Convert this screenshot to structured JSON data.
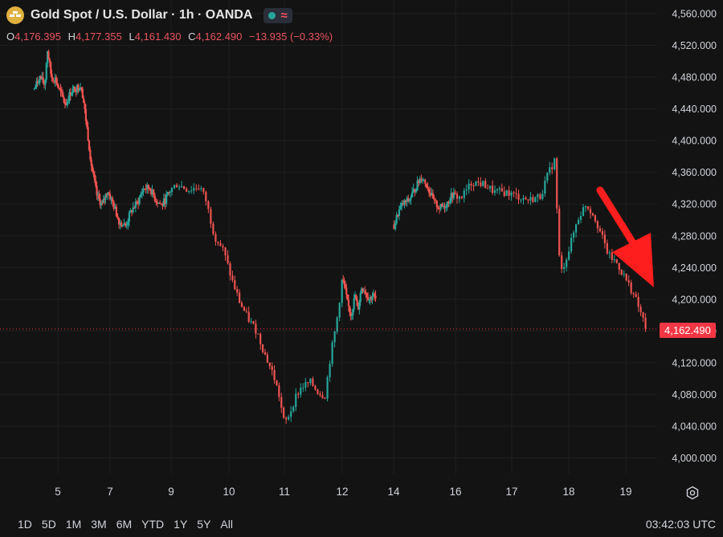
{
  "header": {
    "symbol_title": "Gold Spot / U.S. Dollar · 1h · OANDA",
    "market_status_icon": "green-dot",
    "wave_icon": "≈"
  },
  "ohlc": {
    "o_label": "O",
    "o_value": "4,176.395",
    "h_label": "H",
    "h_value": "4,177.355",
    "l_label": "L",
    "l_value": "4,161.430",
    "c_label": "C",
    "c_value": "4,162.490",
    "change": "−13.935 (−0.33%)"
  },
  "colors": {
    "background": "#131313",
    "up": "#26a69a",
    "down": "#ef5350",
    "annotation_arrow": "#ff1e1e",
    "price_label": "#f23645"
  },
  "current_price_label": "4,162.490",
  "timeframes": [
    "1D",
    "5D",
    "1M",
    "3M",
    "6M",
    "YTD",
    "1Y",
    "5Y",
    "All"
  ],
  "clock": "03:42:03 UTC",
  "settings_icon": "gear-icon",
  "chart_data": {
    "type": "candlestick",
    "title": "Gold Spot / U.S. Dollar · 1h · OANDA",
    "y_ticks": [
      "4,560.000",
      "4,520.000",
      "4,480.000",
      "4,440.000",
      "4,400.000",
      "4,360.000",
      "4,320.000",
      "4,280.000",
      "4,240.000",
      "4,200.000",
      "4,160.000",
      "4,120.000",
      "4,080.000",
      "4,040.000",
      "4,000.000"
    ],
    "y_tick_values": [
      4560,
      4520,
      4480,
      4440,
      4400,
      4360,
      4320,
      4280,
      4240,
      4200,
      4160,
      4120,
      4080,
      4040,
      4000
    ],
    "x_ticks": [
      {
        "label": "5",
        "x": 5
      },
      {
        "label": "7",
        "x": 7
      },
      {
        "label": "9",
        "x": 9
      },
      {
        "label": "10",
        "x": 10
      },
      {
        "label": "11",
        "x": 11
      },
      {
        "label": "12",
        "x": 12
      },
      {
        "label": "14",
        "x": 14
      },
      {
        "label": "16",
        "x": 16
      },
      {
        "label": "17",
        "x": 17
      },
      {
        "label": "18",
        "x": 18
      },
      {
        "label": "19",
        "x": 19
      }
    ],
    "x_range": [
      4.1,
      19.6
    ],
    "ylim": [
      3985,
      4575
    ],
    "current_price": 4162.49,
    "approx_price_path": [
      [
        4.1,
        4465
      ],
      [
        4.3,
        4480
      ],
      [
        4.5,
        4470
      ],
      [
        4.6,
        4515
      ],
      [
        4.75,
        4480
      ],
      [
        4.9,
        4478
      ],
      [
        5.1,
        4460
      ],
      [
        5.3,
        4445
      ],
      [
        5.5,
        4462
      ],
      [
        5.9,
        4470
      ],
      [
        6.1,
        4420
      ],
      [
        6.3,
        4365
      ],
      [
        6.5,
        4330
      ],
      [
        6.7,
        4318
      ],
      [
        6.9,
        4338
      ],
      [
        7.1,
        4320
      ],
      [
        7.3,
        4298
      ],
      [
        7.5,
        4292
      ],
      [
        7.7,
        4312
      ],
      [
        7.9,
        4322
      ],
      [
        8.1,
        4340
      ],
      [
        8.3,
        4340
      ],
      [
        8.5,
        4325
      ],
      [
        8.7,
        4318
      ],
      [
        8.9,
        4332
      ],
      [
        9.1,
        4345
      ],
      [
        9.3,
        4338
      ],
      [
        9.5,
        4342
      ],
      [
        9.6,
        4325
      ],
      [
        9.75,
        4280
      ],
      [
        9.9,
        4262
      ],
      [
        10.05,
        4225
      ],
      [
        10.2,
        4195
      ],
      [
        10.35,
        4175
      ],
      [
        10.5,
        4160
      ],
      [
        10.65,
        4130
      ],
      [
        10.8,
        4105
      ],
      [
        10.9,
        4080
      ],
      [
        11.0,
        4042
      ],
      [
        11.1,
        4058
      ],
      [
        11.2,
        4078
      ],
      [
        11.3,
        4090
      ],
      [
        11.45,
        4095
      ],
      [
        11.6,
        4082
      ],
      [
        11.7,
        4078
      ],
      [
        11.8,
        4130
      ],
      [
        11.9,
        4170
      ],
      [
        12.0,
        4225
      ],
      [
        12.1,
        4215
      ],
      [
        12.2,
        4195
      ],
      [
        12.35,
        4180
      ],
      [
        12.5,
        4205
      ],
      [
        12.6,
        4185
      ],
      [
        12.75,
        4215
      ],
      [
        12.9,
        4210
      ],
      [
        13.05,
        4200
      ],
      [
        13.2,
        4205
      ],
      [
        13.3,
        4200
      ],
      [
        14.0,
        4290
      ],
      [
        14.15,
        4310
      ],
      [
        14.3,
        4320
      ],
      [
        14.5,
        4325
      ],
      [
        14.7,
        4340
      ],
      [
        14.9,
        4355
      ],
      [
        15.1,
        4342
      ],
      [
        15.3,
        4322
      ],
      [
        15.5,
        4315
      ],
      [
        15.7,
        4320
      ],
      [
        15.9,
        4332
      ],
      [
        16.1,
        4328
      ],
      [
        16.3,
        4348
      ],
      [
        16.5,
        4345
      ],
      [
        16.7,
        4335
      ],
      [
        16.9,
        4335
      ],
      [
        17.1,
        4330
      ],
      [
        17.3,
        4325
      ],
      [
        17.5,
        4330
      ],
      [
        17.65,
        4360
      ],
      [
        17.75,
        4375
      ],
      [
        17.85,
        4230
      ],
      [
        18.0,
        4262
      ],
      [
        18.15,
        4300
      ],
      [
        18.3,
        4320
      ],
      [
        18.45,
        4305
      ],
      [
        18.6,
        4275
      ],
      [
        18.7,
        4255
      ],
      [
        18.85,
        4245
      ],
      [
        19.0,
        4225
      ],
      [
        19.1,
        4212
      ],
      [
        19.2,
        4195
      ],
      [
        19.3,
        4175
      ],
      [
        19.35,
        4162.49
      ]
    ]
  }
}
